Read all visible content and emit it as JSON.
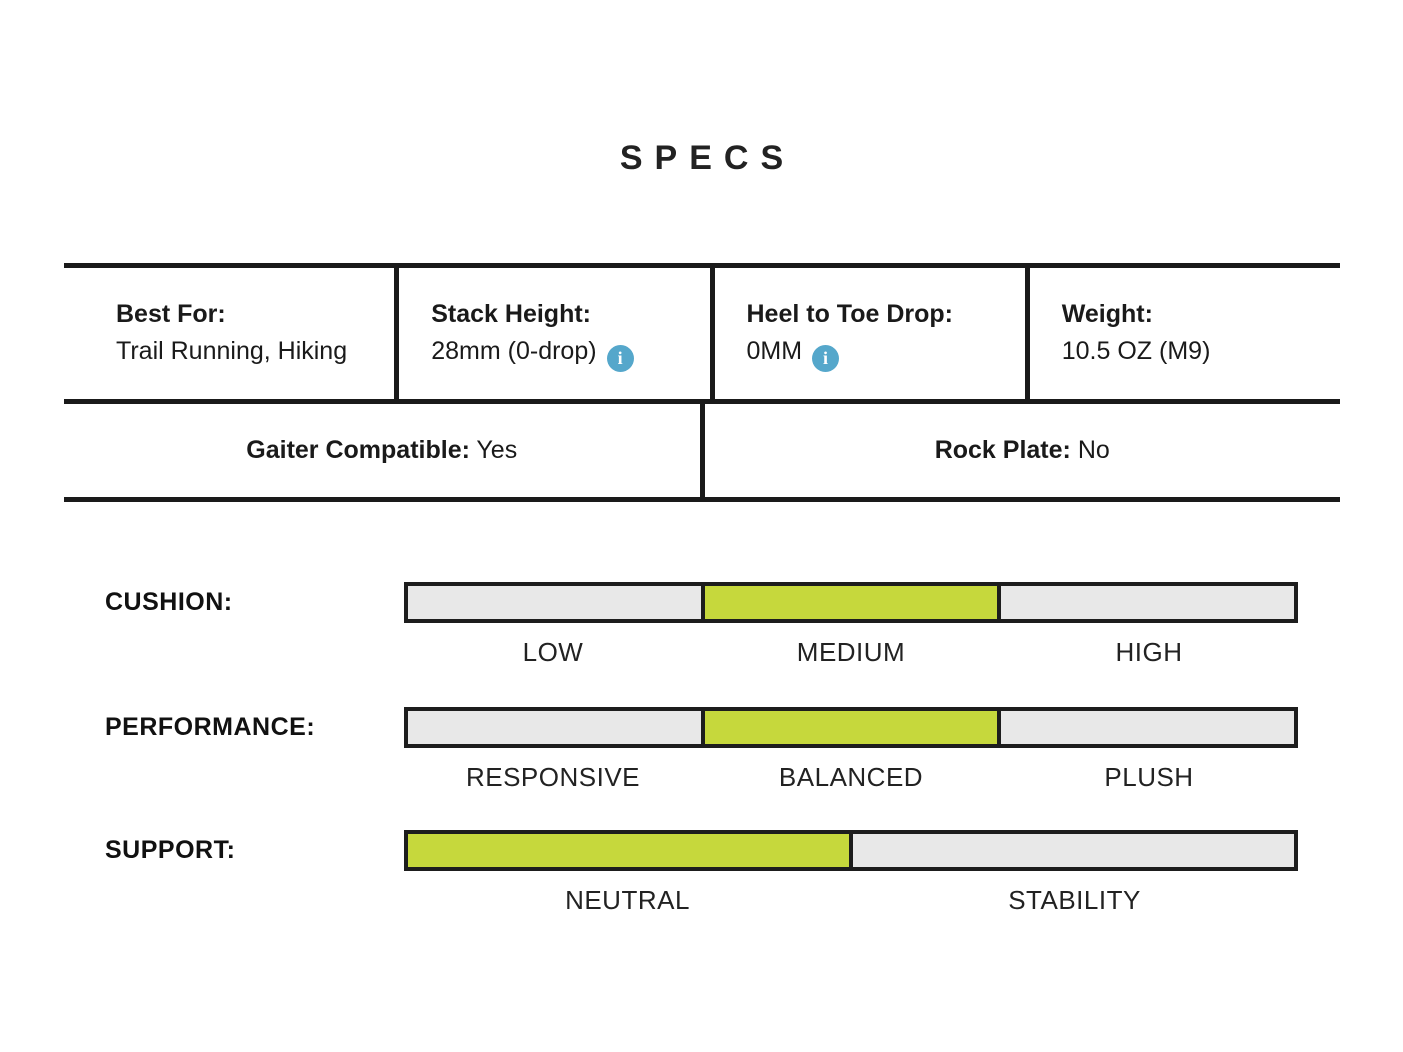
{
  "title": "SPECS",
  "colors": {
    "ink": "#1a1a1a",
    "accent": "#c6d83c",
    "info_blue": "#55a7cb",
    "bar_gray": "#e8e8e8"
  },
  "info_icon_glyph": "i",
  "table": {
    "row1": [
      {
        "label": "Best For:",
        "value": "Trail Running, Hiking"
      },
      {
        "label": "Stack Height:",
        "value": "28mm (0-drop)",
        "has_info": true
      },
      {
        "label": "Heel to Toe Drop:",
        "value": "0MM",
        "has_info": true
      },
      {
        "label": "Weight:",
        "value": "10.5 OZ (M9)"
      }
    ],
    "row2": [
      {
        "label": "Gaiter Compatible:",
        "value": " Yes"
      },
      {
        "label": "Rock Plate:",
        "value": " No"
      }
    ]
  },
  "sliders": [
    {
      "name": "CUSHION:",
      "options": [
        "LOW",
        "MEDIUM",
        "HIGH"
      ],
      "selected_index": 1
    },
    {
      "name": "PERFORMANCE:",
      "options": [
        "RESPONSIVE",
        "BALANCED",
        "PLUSH"
      ],
      "selected_index": 1
    },
    {
      "name": "SUPPORT:",
      "options": [
        "NEUTRAL",
        "STABILITY"
      ],
      "selected_index": 0
    }
  ]
}
